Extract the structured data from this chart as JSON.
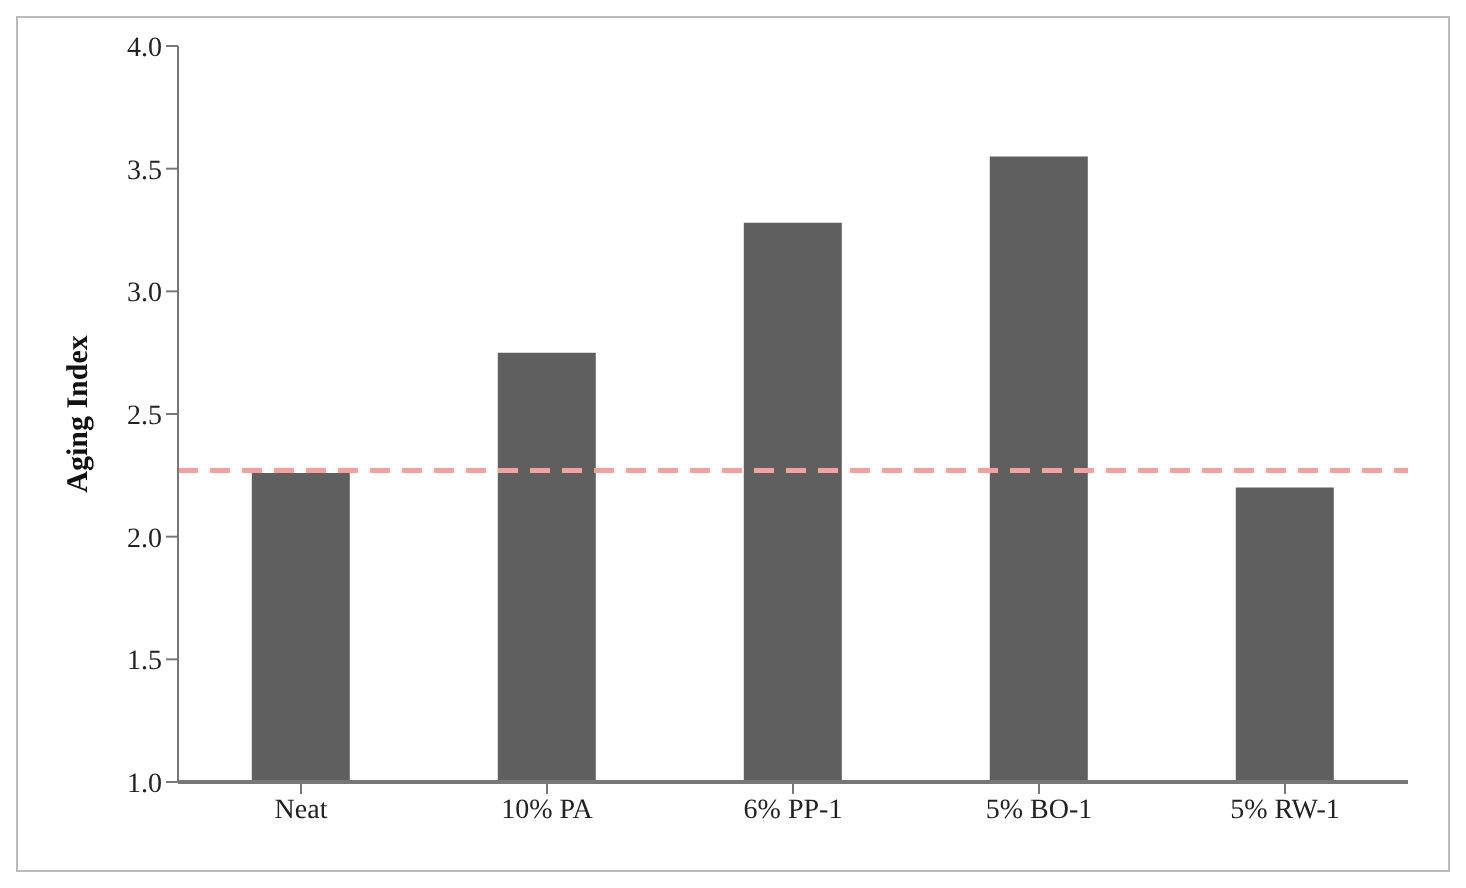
{
  "chart_data": {
    "type": "bar",
    "ylabel": "Aging Index",
    "categories": [
      "Neat",
      "10% PA",
      "6% PP-1",
      "5% BO-1",
      "5% RW-1"
    ],
    "values": [
      2.26,
      2.75,
      3.28,
      3.55,
      2.2
    ],
    "color": "#5f5f5f",
    "ylim": [
      1.0,
      4.0
    ],
    "yticks": [
      {
        "value": 1.0,
        "label": "1.0"
      },
      {
        "value": 1.5,
        "label": "1.5"
      },
      {
        "value": 2.0,
        "label": "2.0"
      },
      {
        "value": 2.5,
        "label": "2.5"
      },
      {
        "value": 3.0,
        "label": "3.0"
      },
      {
        "value": 3.5,
        "label": "3.5"
      },
      {
        "value": 4.0,
        "label": "4.0"
      }
    ],
    "ref_lines": [
      {
        "axis": "y",
        "value": 2.27,
        "color": "#f4a0a0",
        "line_style": "dashed"
      }
    ],
    "grid": false,
    "legend": false
  }
}
